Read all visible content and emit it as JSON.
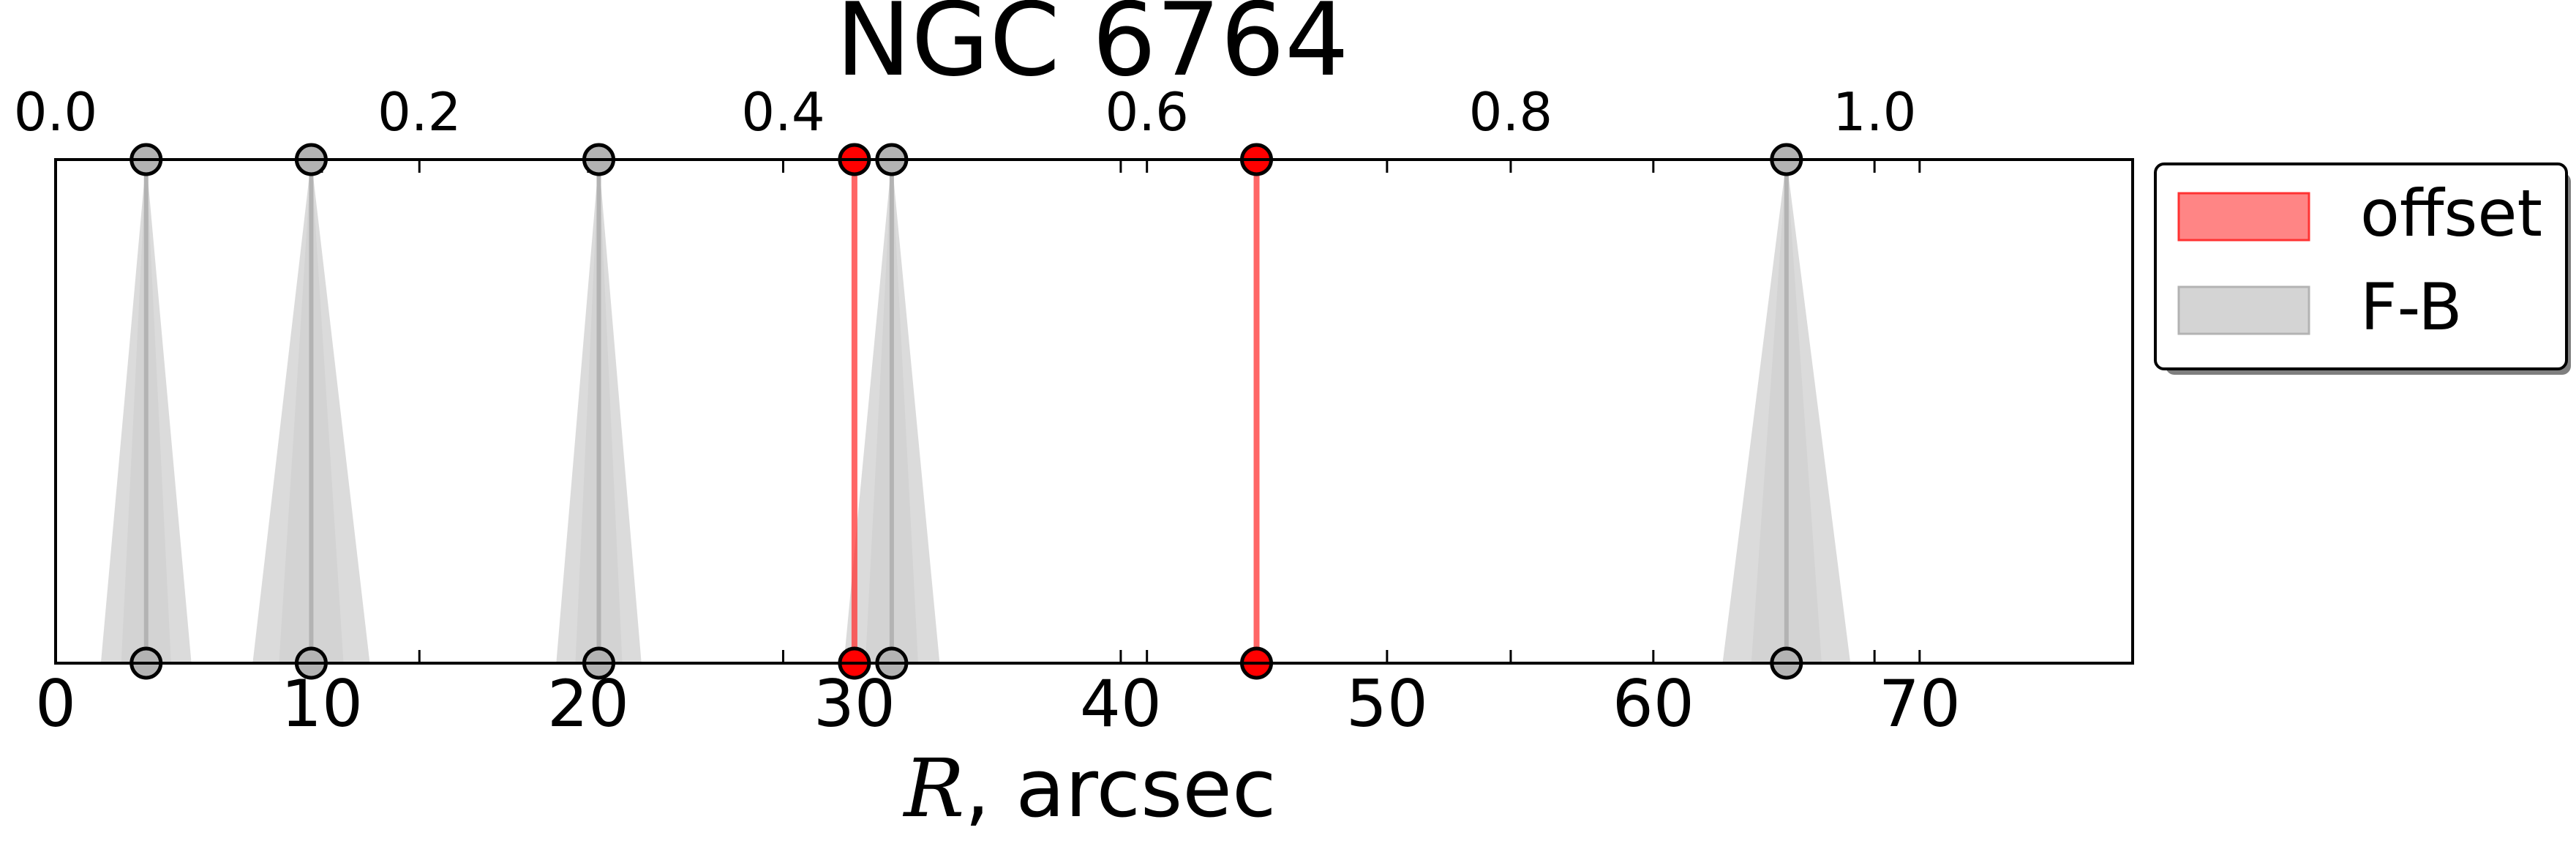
{
  "chart_data": {
    "type": "scatter",
    "title": "NGC 6764",
    "xlabel_var": "R",
    "xlabel_rest": ", arcsec",
    "xlim": [
      0,
      78
    ],
    "bottom_ticks": [
      0,
      10,
      20,
      30,
      40,
      50,
      60,
      70
    ],
    "top_axis_scale": 0.01464,
    "top_ticks": [
      "0.0",
      "0.2",
      "0.4",
      "0.6",
      "0.8",
      "1.0"
    ],
    "top_tick_values": [
      0.0,
      0.2,
      0.4,
      0.6,
      0.8,
      1.0
    ],
    "series": [
      {
        "name": "offset",
        "color": "#ff3333",
        "marker_color": "#ff0000",
        "x": [
          30.0,
          45.1
        ]
      },
      {
        "name": "F-B",
        "color": "#cccccc",
        "marker_color": "#b3b3b3",
        "x": [
          3.4,
          9.6,
          20.4,
          31.4,
          65.0
        ],
        "half_width": [
          1.7,
          2.2,
          1.6,
          1.8,
          2.4
        ]
      }
    ],
    "legend_position": "upper-right-outside",
    "grid": false
  }
}
